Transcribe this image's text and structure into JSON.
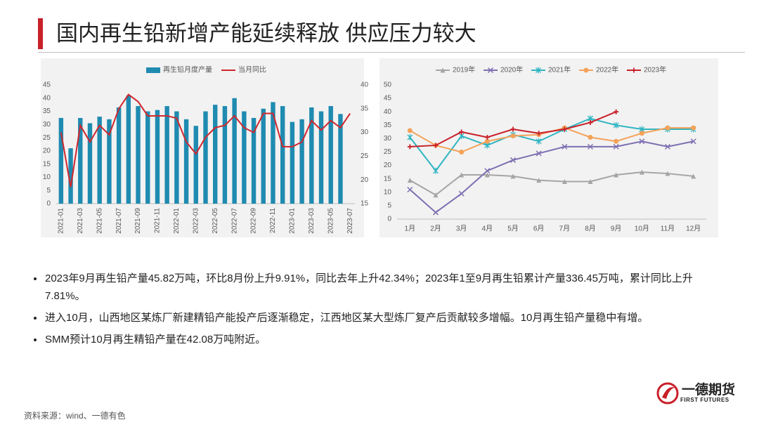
{
  "header": {
    "title": "国内再生铅新增产能延续释放 供应压力较大"
  },
  "chart_data": [
    {
      "type": "combo",
      "categories": [
        "2021-01",
        null,
        "2021-03",
        null,
        "2021-05",
        null,
        "2021-07",
        null,
        "2021-09",
        null,
        "2021-11",
        null,
        "2022-01",
        null,
        "2022-03",
        null,
        "2022-05",
        null,
        "2022-07",
        null,
        "2022-09",
        null,
        "2022-11",
        null,
        "2023-01",
        null,
        "2023-03",
        null,
        "2023-05",
        null,
        "2023-07"
      ],
      "series": [
        {
          "name": "再生铅月度产量",
          "type": "bar",
          "color": "#1f8bb0",
          "values": [
            32.5,
            21,
            32.5,
            30.5,
            33,
            32,
            36.5,
            41,
            37,
            35,
            35.5,
            37,
            35,
            32,
            29.5,
            35,
            37.5,
            37,
            40,
            35,
            32.5,
            36,
            38.5,
            37,
            31,
            32,
            36.5,
            35,
            37,
            34,
            null
          ]
        },
        {
          "name": "当月同比",
          "type": "line",
          "axis": "y2",
          "color": "#d0262d",
          "values": [
            30,
            18.5,
            31.5,
            28,
            31.5,
            29.5,
            35,
            38,
            36.5,
            33.5,
            33.5,
            33.5,
            33,
            28,
            25.5,
            29,
            31,
            31.5,
            33.5,
            31,
            30,
            34,
            34,
            27,
            27,
            28,
            32.5,
            30.5,
            32.5,
            31,
            34
          ]
        }
      ],
      "ylim": [
        0,
        45
      ],
      "yticks": [
        0,
        5,
        10,
        15,
        20,
        25,
        30,
        35,
        40,
        45
      ],
      "y2lim": [
        15,
        40
      ],
      "y2ticks": [
        15,
        20,
        25,
        30,
        35,
        40
      ],
      "grid": false,
      "legend": "top"
    },
    {
      "type": "line",
      "categories": [
        "1月",
        "2月",
        "3月",
        "4月",
        "5月",
        "6月",
        "7月",
        "8月",
        "9月",
        "10月",
        "11月",
        "12月"
      ],
      "series": [
        {
          "name": "2019年",
          "color": "#a5a5a5",
          "marker": "triangle",
          "values": [
            14.5,
            9,
            16.5,
            16.5,
            16,
            14.5,
            14,
            14,
            16.5,
            17.5,
            17,
            16
          ]
        },
        {
          "name": "2020年",
          "color": "#7e6fb1",
          "marker": "x",
          "values": [
            11,
            2.5,
            9.5,
            18,
            22,
            24.5,
            27,
            27,
            27,
            29,
            27,
            29
          ]
        },
        {
          "name": "2021年",
          "color": "#2fb5c2",
          "marker": "star",
          "values": [
            30.5,
            18,
            31,
            27.5,
            31.5,
            29,
            33.5,
            37.5,
            35,
            33.5,
            33.5,
            33.5
          ]
        },
        {
          "name": "2022年",
          "color": "#f4a259",
          "marker": "circle",
          "values": [
            33,
            27.5,
            25,
            29,
            31,
            31.5,
            34,
            30.5,
            29,
            32,
            34,
            34
          ]
        },
        {
          "name": "2023年",
          "color": "#c9202a",
          "marker": "plus",
          "values": [
            27,
            27.5,
            32.5,
            30.5,
            33.5,
            32,
            33.5,
            36,
            40,
            null,
            null,
            null
          ]
        }
      ],
      "ylim": [
        0,
        50
      ],
      "yticks": [
        0,
        5,
        10,
        15,
        20,
        25,
        30,
        35,
        40,
        45,
        50
      ],
      "grid": false,
      "legend": "top"
    }
  ],
  "bullets": [
    "2023年9月再生铅产量45.82万吨，环比8月份上升9.91%，同比去年上升42.34%；2023年1至9月再生铅累计产量336.45万吨，累计同比上升7.81%。",
    "进入10月，山西地区某炼厂新建精铅产能投产后逐渐稳定，江西地区某大型炼厂复产后贡献较多增幅。10月再生铅产量稳中有增。",
    "SMM预计10月再生精铅产量在42.08万吨附近。"
  ],
  "source": "资料来源：wind、一德有色",
  "logo": {
    "name": "一德期货",
    "english": "FIRST FUTURES"
  }
}
